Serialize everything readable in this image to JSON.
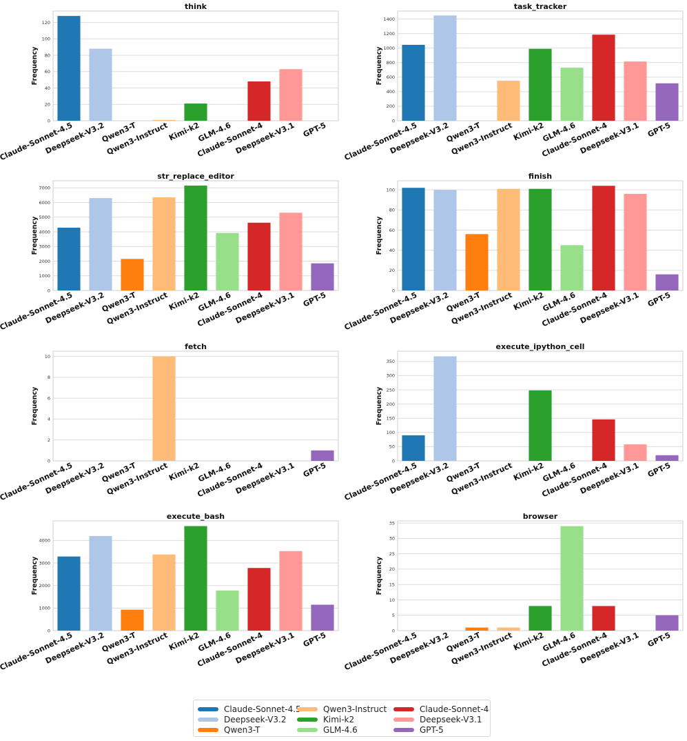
{
  "chart_data": [
    {
      "type": "bar",
      "title": "think",
      "ylabel": "Frequency",
      "categories": [
        "Claude-Sonnet-4.5",
        "Deepseek-V3.2",
        "Qwen3-T",
        "Qwen3-Instruct",
        "Kimi-k2",
        "GLM-4.6",
        "Claude-Sonnet-4",
        "Deepseek-V3.1",
        "GPT-5"
      ],
      "values": [
        128,
        88,
        0,
        1,
        21,
        0,
        48,
        63,
        0
      ],
      "yticks": [
        0,
        20,
        40,
        60,
        80,
        100,
        120
      ],
      "ylim": [
        0,
        134
      ]
    },
    {
      "type": "bar",
      "title": "task_tracker",
      "ylabel": "Frequency",
      "categories": [
        "Claude-Sonnet-4.5",
        "Deepseek-V3.2",
        "Qwen3-T",
        "Qwen3-Instruct",
        "Kimi-k2",
        "GLM-4.6",
        "Claude-Sonnet-4",
        "Deepseek-V3.1",
        "GPT-5"
      ],
      "values": [
        1045,
        1450,
        0,
        550,
        990,
        730,
        1185,
        815,
        515
      ],
      "yticks": [
        0,
        200,
        400,
        600,
        800,
        1000,
        1200,
        1400
      ],
      "ylim": [
        0,
        1510
      ]
    },
    {
      "type": "bar",
      "title": "str_replace_editor",
      "ylabel": "Frequency",
      "categories": [
        "Claude-Sonnet-4.5",
        "Deepseek-V3.2",
        "Qwen3-T",
        "Qwen3-Instruct",
        "Kimi-k2",
        "GLM-4.6",
        "Claude-Sonnet-4",
        "Deepseek-V3.1",
        "GPT-5"
      ],
      "values": [
        4280,
        6300,
        2150,
        6350,
        7150,
        3920,
        4620,
        5300,
        1850
      ],
      "yticks": [
        0,
        1000,
        2000,
        3000,
        4000,
        5000,
        6000,
        7000
      ],
      "ylim": [
        0,
        7480
      ]
    },
    {
      "type": "bar",
      "title": "finish",
      "ylabel": "Frequency",
      "categories": [
        "Claude-Sonnet-4.5",
        "Deepseek-V3.2",
        "Qwen3-T",
        "Qwen3-Instruct",
        "Kimi-k2",
        "GLM-4.6",
        "Claude-Sonnet-4",
        "Deepseek-V3.1",
        "GPT-5"
      ],
      "values": [
        102,
        100,
        56,
        101,
        101,
        45,
        104,
        96,
        16
      ],
      "yticks": [
        0,
        20,
        40,
        60,
        80,
        100
      ],
      "ylim": [
        0,
        109
      ]
    },
    {
      "type": "bar",
      "title": "fetch",
      "ylabel": "Frequency",
      "categories": [
        "Claude-Sonnet-4.5",
        "Deepseek-V3.2",
        "Qwen3-T",
        "Qwen3-Instruct",
        "Kimi-k2",
        "GLM-4.6",
        "Claude-Sonnet-4",
        "Deepseek-V3.1",
        "GPT-5"
      ],
      "values": [
        0,
        0,
        0,
        10,
        0,
        0,
        0,
        0,
        1
      ],
      "yticks": [
        0,
        2,
        4,
        6,
        8,
        10
      ],
      "ylim": [
        0,
        10.5
      ]
    },
    {
      "type": "bar",
      "title": "execute_ipython_cell",
      "ylabel": "Frequency",
      "categories": [
        "Claude-Sonnet-4.5",
        "Deepseek-V3.2",
        "Qwen3-T",
        "Qwen3-Instruct",
        "Kimi-k2",
        "GLM-4.6",
        "Claude-Sonnet-4",
        "Deepseek-V3.1",
        "GPT-5"
      ],
      "values": [
        90,
        368,
        0,
        0,
        248,
        0,
        146,
        58,
        20
      ],
      "yticks": [
        0,
        50,
        100,
        150,
        200,
        250,
        300,
        350
      ],
      "ylim": [
        0,
        386
      ]
    },
    {
      "type": "bar",
      "title": "execute_bash",
      "ylabel": "Frequency",
      "categories": [
        "Claude-Sonnet-4.5",
        "Deepseek-V3.2",
        "Qwen3-T",
        "Qwen3-Instruct",
        "Kimi-k2",
        "GLM-4.6",
        "Claude-Sonnet-4",
        "Deepseek-V3.1",
        "GPT-5"
      ],
      "values": [
        3290,
        4200,
        930,
        3380,
        4640,
        1780,
        2780,
        3530,
        1150
      ],
      "yticks": [
        0,
        1000,
        2000,
        3000,
        4000
      ],
      "ylim": [
        0,
        4870
      ]
    },
    {
      "type": "bar",
      "title": "browser",
      "ylabel": "Frequency",
      "categories": [
        "Claude-Sonnet-4.5",
        "Deepseek-V3.2",
        "Qwen3-T",
        "Qwen3-Instruct",
        "Kimi-k2",
        "GLM-4.6",
        "Claude-Sonnet-4",
        "Deepseek-V3.1",
        "GPT-5"
      ],
      "values": [
        0,
        0,
        1,
        1,
        8,
        34,
        8,
        0,
        5
      ],
      "yticks": [
        0,
        5,
        10,
        15,
        20,
        25,
        30,
        35
      ],
      "ylim": [
        0,
        35.7
      ]
    }
  ],
  "colors": [
    "#1f77b4",
    "#aec7e8",
    "#ff7f0e",
    "#ffbb78",
    "#2ca02c",
    "#98df8a",
    "#d62728",
    "#ff9896",
    "#9467bd"
  ],
  "legend": {
    "placement": "bottom-center",
    "items": [
      {
        "label": "Claude-Sonnet-4.5",
        "color": "#1f77b4"
      },
      {
        "label": "Deepseek-V3.2",
        "color": "#aec7e8"
      },
      {
        "label": "Qwen3-T",
        "color": "#ff7f0e"
      },
      {
        "label": "Qwen3-Instruct",
        "color": "#ffbb78"
      },
      {
        "label": "Kimi-k2",
        "color": "#2ca02c"
      },
      {
        "label": "GLM-4.6",
        "color": "#98df8a"
      },
      {
        "label": "Claude-Sonnet-4",
        "color": "#d62728"
      },
      {
        "label": "Deepseek-V3.1",
        "color": "#ff9896"
      },
      {
        "label": "GPT-5",
        "color": "#9467bd"
      }
    ]
  }
}
